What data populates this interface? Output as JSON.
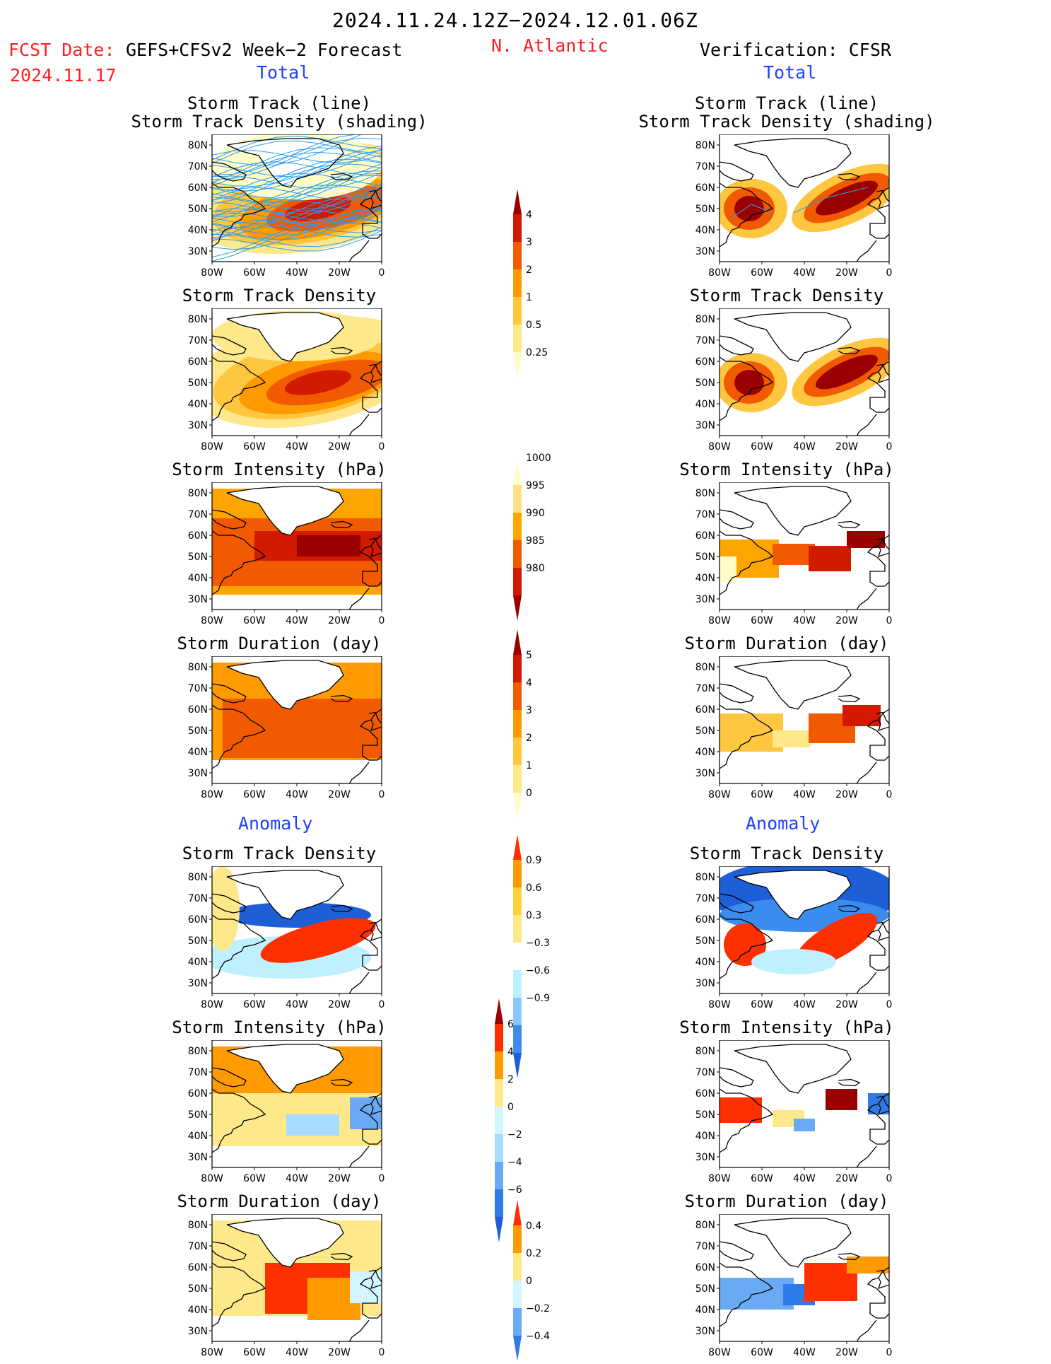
{
  "header": {
    "date_range": "2024.11.24.12Z−2024.12.01.06Z",
    "fcst_label": "FCST Date:",
    "forecast_name": "GEFS+CFSv2 Week−2 Forecast",
    "fcst_date": "2024.11.17",
    "region": "N. Atlantic",
    "verification": "Verification: CFSR"
  },
  "sections": {
    "total_left": "Total",
    "total_right": "Total",
    "anomaly_left": "Anomaly",
    "anomaly_right": "Anomaly"
  },
  "panel_titles": {
    "track_line": "Storm Track (line)",
    "track_density_shading": "Storm Track Density (shading)",
    "track_density": "Storm Track Density",
    "intensity": "Storm Intensity (hPa)",
    "duration": "Storm Duration (day)"
  },
  "axes": {
    "lat_ticks": [
      "80N",
      "70N",
      "60N",
      "50N",
      "40N",
      "30N"
    ],
    "lon_ticks": [
      "80W",
      "60W",
      "40W",
      "20W",
      "0"
    ]
  },
  "colorbars": {
    "track_density": {
      "labels": [
        "4",
        "3",
        "2",
        "1",
        "0.5",
        "0.25"
      ],
      "colors": [
        "#9b0000",
        "#d21a00",
        "#f25a00",
        "#ff9a00",
        "#ffc640",
        "#ffe88a",
        "#fffcc8"
      ]
    },
    "intensity": {
      "labels": [
        "1000",
        "995",
        "990",
        "985",
        "980"
      ],
      "colors": [
        "#fffcc8",
        "#ffe088",
        "#ffa500",
        "#f25a00",
        "#d21a00",
        "#9b0000"
      ]
    },
    "duration": {
      "labels": [
        "5",
        "4",
        "3",
        "2",
        "1",
        "0"
      ],
      "colors": [
        "#9b0000",
        "#d21a00",
        "#f25a00",
        "#ff9a00",
        "#ffc640",
        "#ffe88a",
        "#fffcc8"
      ]
    },
    "anom_density": {
      "labels": [
        "0.9",
        "0.6",
        "0.3",
        "−0.3",
        "−0.6",
        "−0.9"
      ],
      "colors": [
        "#ff3000",
        "#ff9a00",
        "#ffd23c",
        "#ffe88a",
        "#ffffff",
        "#bff0ff",
        "#88c8ff",
        "#3c8cf0",
        "#1e5fd8"
      ]
    },
    "anom_intensity": {
      "labels": [
        "6",
        "4",
        "2",
        "0",
        "−2",
        "−4",
        "−6"
      ],
      "colors": [
        "#9b0000",
        "#ff3000",
        "#ff9a00",
        "#ffe88a",
        "#d2f5ff",
        "#a6dcff",
        "#6aaaf5",
        "#2f7ae6",
        "#1e5fd8"
      ]
    },
    "anom_duration": {
      "labels": [
        "0.4",
        "0.2",
        "0",
        "−0.2",
        "−0.4"
      ],
      "colors": [
        "#ff3000",
        "#ff9a00",
        "#ffe88a",
        "#d2f5ff",
        "#6aaaf5",
        "#2f7ae6"
      ]
    }
  }
}
